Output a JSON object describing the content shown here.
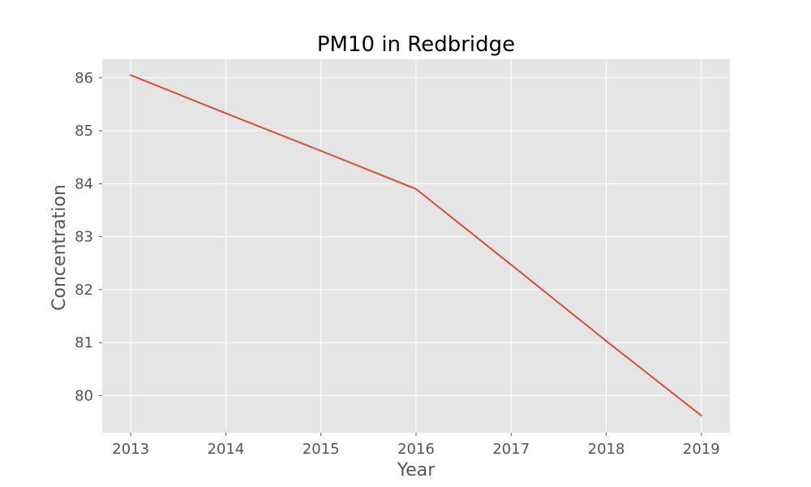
{
  "chart_data": {
    "type": "line",
    "title": "PM10 in Redbridge",
    "xlabel": "Year",
    "ylabel": "Concentration",
    "x": [
      2013,
      2014,
      2015,
      2016,
      2017,
      2018,
      2019
    ],
    "series": [
      {
        "values": [
          86.05,
          85.33,
          84.62,
          83.9,
          82.47,
          81.03,
          79.62
        ]
      }
    ],
    "xlim": [
      2012.7,
      2019.3
    ],
    "ylim": [
      79.3,
      86.35
    ],
    "xticks": [
      "2013",
      "2014",
      "2015",
      "2016",
      "2017",
      "2018",
      "2019"
    ],
    "yticks": [
      "80",
      "81",
      "82",
      "83",
      "84",
      "85",
      "86"
    ],
    "grid": true,
    "legend": "none"
  },
  "colors": {
    "plot_background": "#e5e5e5",
    "grid": "#ffffff",
    "line": "#e24a33",
    "tick_text": "#555555",
    "label_text": "#555555",
    "title_text": "#000000"
  }
}
